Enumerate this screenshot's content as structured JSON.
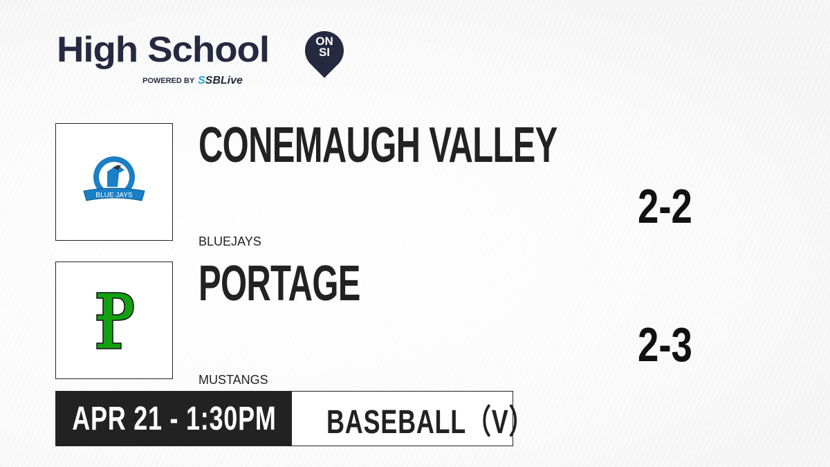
{
  "brand": {
    "title": "High School",
    "badge_top": "ON",
    "badge_bottom": "SI",
    "powered_by": "POWERED BY",
    "partner": "SBLive",
    "partner_accent": "#1ea7e0"
  },
  "teams": [
    {
      "name": "CONEMAUGH VALLEY",
      "mascot": "BLUEJAYS",
      "record": "2-2",
      "logo_text_top": "CONEMAUGH VALLEY",
      "logo_text_banner": "BLUE JAYS"
    },
    {
      "name": "PORTAGE",
      "mascot": "MUSTANGS",
      "record": "2-3",
      "logo_letter": "P"
    }
  ],
  "game": {
    "datetime": "APR 21 - 1:30PM",
    "sport": "BASEBALL（V）"
  }
}
